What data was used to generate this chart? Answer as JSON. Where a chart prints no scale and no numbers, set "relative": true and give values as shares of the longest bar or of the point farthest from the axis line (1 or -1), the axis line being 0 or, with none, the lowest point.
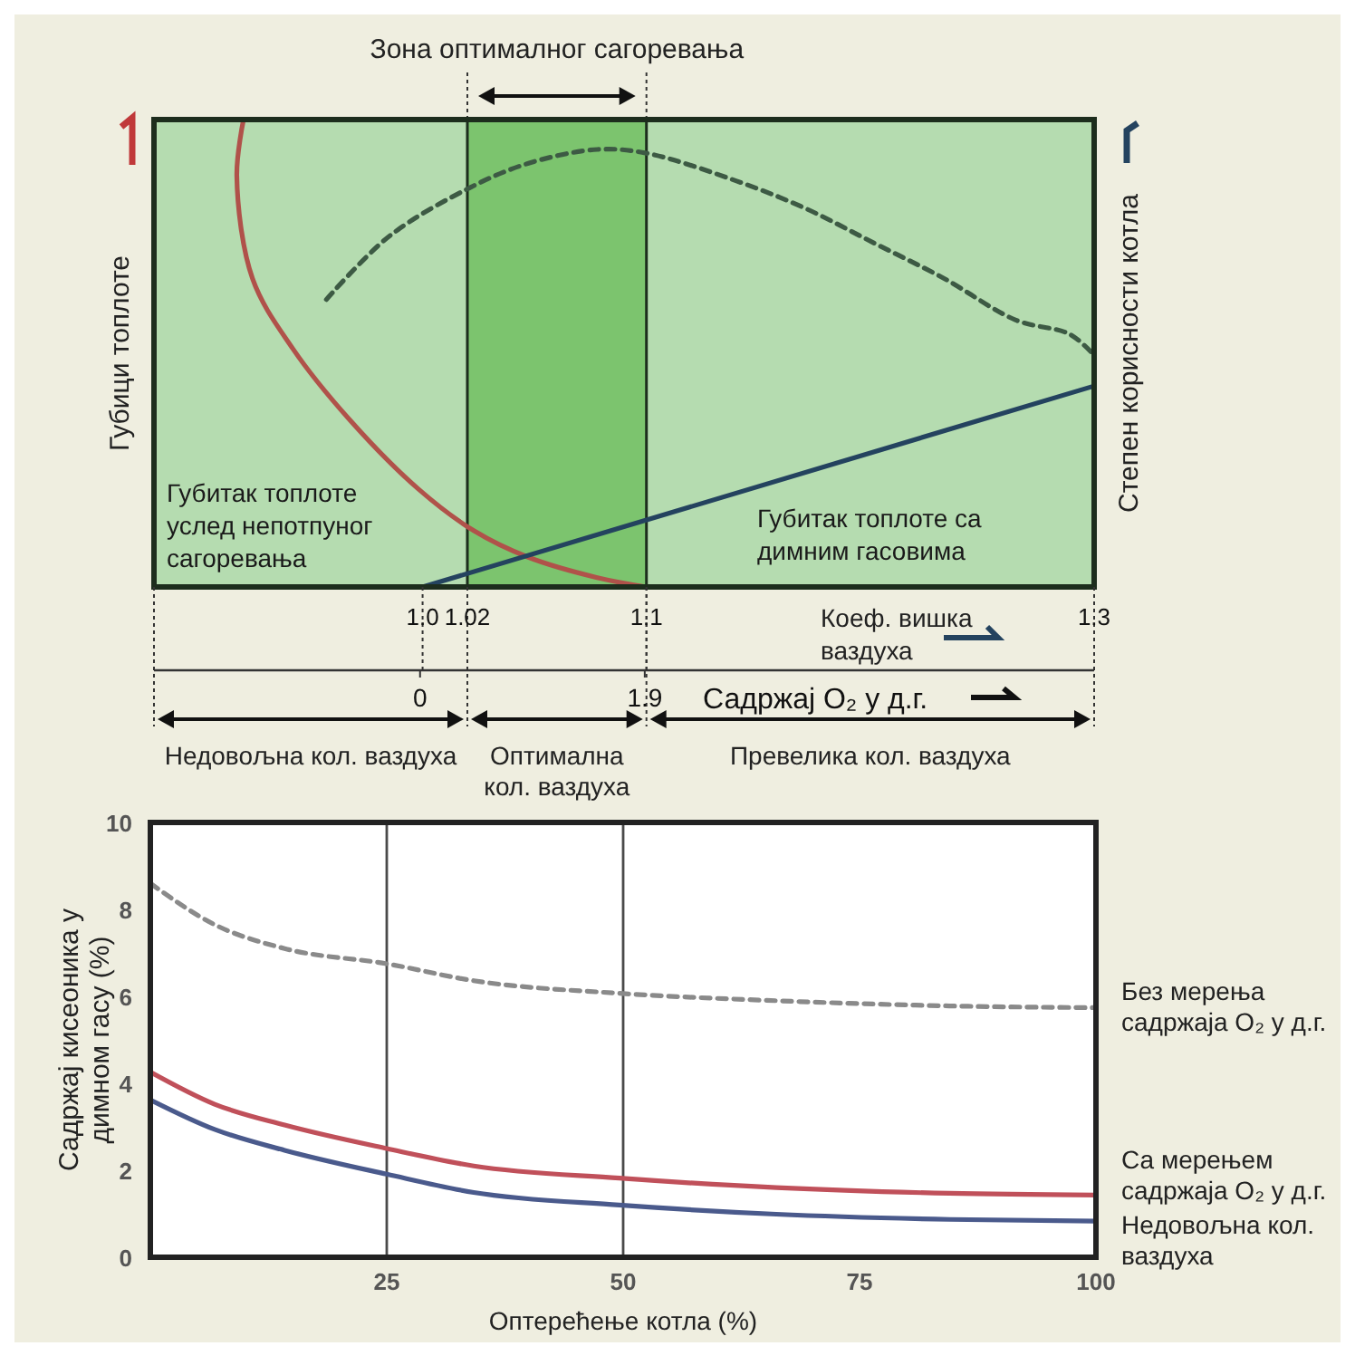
{
  "chart_data": [
    {
      "type": "line",
      "relative": true,
      "xlabel": "Коеф. вишка ваздуха",
      "ylabel": "Губици топлоте",
      "y2label": "Степен корисности котла",
      "x2label": "Садржај O₂ у д.г.",
      "xlim": [
        0.88,
        1.3
      ],
      "xticks": [
        {
          "value": 1,
          "label": "1.0"
        },
        1.02,
        1.1,
        1.3
      ],
      "x2lim": [
        -2.25,
        5.7
      ],
      "x2ticks": [
        0,
        1.9
      ],
      "grid": "x",
      "legend": false,
      "bands": [
        {
          "axis": "x",
          "from": 1.02,
          "to": 1.1,
          "label": "Зона оптималног сагоревања",
          "color": "#7cc46e"
        }
      ],
      "series": [
        {
          "color": "#b0524a",
          "line_style": "solid",
          "x": [
            0.92,
            0.917,
            0.924,
            0.942,
            0.967,
            0.998,
            1.023,
            1.047,
            1.078,
            1.1
          ],
          "values": [
            1,
            0.88,
            0.66,
            0.51,
            0.36,
            0.21,
            0.12,
            0.064,
            0.02,
            0
          ]
        },
        {
          "color": "#24435f",
          "line_style": "solid",
          "x": [
            1,
            1.3
          ],
          "values": [
            0,
            0.43
          ]
        },
        {
          "color": "#3d5a44",
          "line_style": "dashed",
          "x": [
            0.957,
            0.985,
            1.021,
            1.047,
            1.078,
            1.1,
            1.14,
            1.171,
            1.202,
            1.233,
            1.265,
            1.289,
            1.3
          ],
          "values": [
            0.615,
            0.75,
            0.854,
            0.906,
            0.936,
            0.928,
            0.869,
            0.81,
            0.735,
            0.66,
            0.571,
            0.541,
            0.496
          ]
        }
      ],
      "annotations": [
        "Губитак топлоте услед непотпуног сагоревања",
        "Губитак топлоте са димним гасовима",
        "Недовољна кол. ваздуха",
        "Оптимална кол. ваздуха",
        "Превелика кол. ваздуха"
      ]
    },
    {
      "type": "line",
      "xlabel": "Оптерећење котла (%)",
      "ylabel": "Садржај кисеоника у димном гасу (%)",
      "xlim": [
        0,
        100
      ],
      "xticks": [
        25,
        50,
        75,
        100
      ],
      "ylim": [
        0,
        10
      ],
      "yticks": [
        0,
        2,
        4,
        6,
        8,
        10
      ],
      "grid": false,
      "legend": "right",
      "ref_lines": [
        {
          "axis": "x",
          "value": 25,
          "color": "#4a4a4a"
        },
        {
          "axis": "x",
          "value": 50,
          "color": "#4a4a4a"
        }
      ],
      "series": [
        {
          "name": "Без мерења садржаја O₂ у д.г.",
          "color": "#8a8a8a",
          "line_style": "dashed",
          "x": [
            0,
            6.8,
            14.2,
            25,
            34.2,
            49.6,
            66.2,
            84.5,
            100
          ],
          "values": [
            8.6,
            7.65,
            7.1,
            6.75,
            6.36,
            6.07,
            5.9,
            5.78,
            5.74
          ]
        },
        {
          "name": "Са мерењем садржаја O₂ у д.г.",
          "color": "#c0505a",
          "line_style": "solid",
          "x": [
            0,
            6.8,
            14.2,
            25,
            34.2,
            49.6,
            66.2,
            84.5,
            100
          ],
          "values": [
            4.26,
            3.52,
            3.04,
            2.5,
            2.1,
            1.82,
            1.6,
            1.47,
            1.43
          ]
        },
        {
          "name": "Недовољна кол. ваздуха",
          "color": "#4a5a8c",
          "line_style": "solid",
          "x": [
            0,
            6.8,
            14.2,
            25,
            34.2,
            49.6,
            66.2,
            84.5,
            100
          ],
          "values": [
            3.62,
            2.94,
            2.46,
            1.91,
            1.49,
            1.2,
            0.99,
            0.87,
            0.83
          ]
        }
      ]
    }
  ]
}
